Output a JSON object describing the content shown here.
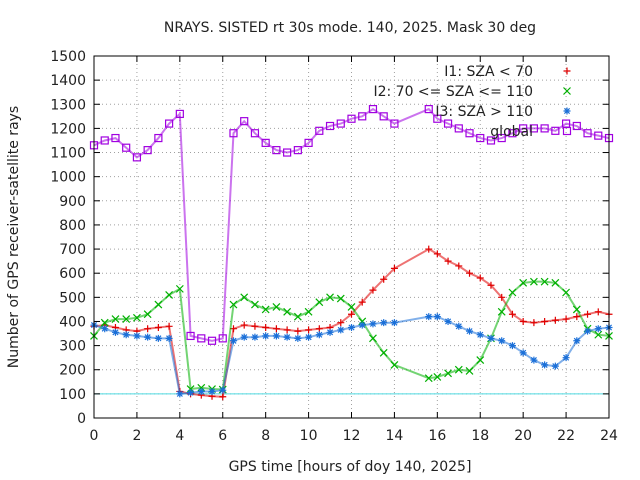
{
  "chart_data": {
    "type": "scatter",
    "title": "NRAYS. SISTED rt 30s mode. 140, 2025. Mask 30 deg",
    "xlabel": "GPS time [hours of doy 140, 2025]",
    "ylabel": "Number of GPS receiver-satellite rays",
    "xlim": [
      0,
      24
    ],
    "ylim": [
      0,
      1500
    ],
    "xticks": [
      0,
      2,
      4,
      6,
      8,
      10,
      12,
      14,
      16,
      18,
      20,
      22,
      24
    ],
    "yticks": [
      0,
      100,
      200,
      300,
      400,
      500,
      600,
      700,
      800,
      900,
      1000,
      1100,
      1200,
      1300,
      1400,
      1500
    ],
    "legend_position": "top-right",
    "reference_line": {
      "y": 100,
      "color": "#4dd9e0"
    },
    "series": [
      {
        "name": "I1: SZA < 70",
        "marker": "plus",
        "color": "#e00000",
        "x": [
          0,
          0.5,
          1,
          1.5,
          2,
          2.5,
          3,
          3.5,
          4,
          4.5,
          5,
          5.5,
          6,
          6.5,
          7,
          7.5,
          8,
          8.5,
          9,
          9.5,
          10,
          10.5,
          11,
          11.5,
          12,
          12.5,
          13,
          13.5,
          14,
          15.6,
          16,
          16.5,
          17,
          17.5,
          18,
          18.5,
          19,
          19.5,
          20,
          20.5,
          21,
          21.5,
          22,
          22.5,
          23,
          23.5,
          24
        ],
        "y": [
          380,
          385,
          375,
          365,
          360,
          370,
          375,
          380,
          110,
          100,
          95,
          90,
          88,
          370,
          385,
          380,
          375,
          370,
          365,
          360,
          365,
          370,
          375,
          395,
          430,
          480,
          530,
          575,
          620,
          700,
          680,
          650,
          630,
          600,
          580,
          550,
          500,
          430,
          400,
          395,
          400,
          405,
          410,
          420,
          430,
          440,
          430
        ]
      },
      {
        "name": "I2: 70 <= SZA <= 110",
        "marker": "cross",
        "color": "#00b000",
        "x": [
          0,
          0.5,
          1,
          1.5,
          2,
          2.5,
          3,
          3.5,
          4,
          4.5,
          5,
          5.5,
          6,
          6.5,
          7,
          7.5,
          8,
          8.5,
          9,
          9.5,
          10,
          10.5,
          11,
          11.5,
          12,
          12.5,
          13,
          13.5,
          14,
          15.6,
          16,
          16.5,
          17,
          17.5,
          18,
          18.5,
          19,
          19.5,
          20,
          20.5,
          21,
          21.5,
          22,
          22.5,
          23,
          23.5,
          24
        ],
        "y": [
          340,
          395,
          410,
          410,
          415,
          430,
          470,
          510,
          535,
          120,
          125,
          120,
          118,
          470,
          500,
          470,
          450,
          460,
          440,
          420,
          440,
          480,
          500,
          495,
          460,
          400,
          330,
          270,
          220,
          165,
          170,
          185,
          200,
          195,
          240,
          330,
          440,
          520,
          560,
          565,
          565,
          560,
          520,
          450,
          370,
          345,
          340
        ]
      },
      {
        "name": "I3: SZA > 110",
        "marker": "star",
        "color": "#1a6fd8",
        "x": [
          0,
          0.5,
          1,
          1.5,
          2,
          2.5,
          3,
          3.5,
          4,
          4.5,
          5,
          5.5,
          6,
          6.5,
          7,
          7.5,
          8,
          8.5,
          9,
          9.5,
          10,
          10.5,
          11,
          11.5,
          12,
          12.5,
          13,
          13.5,
          14,
          15.6,
          16,
          16.5,
          17,
          17.5,
          18,
          18.5,
          19,
          19.5,
          20,
          20.5,
          21,
          21.5,
          22,
          22.5,
          23,
          23.5,
          24
        ],
        "y": [
          385,
          370,
          355,
          345,
          340,
          335,
          330,
          330,
          100,
          105,
          110,
          110,
          115,
          320,
          335,
          335,
          340,
          340,
          335,
          330,
          335,
          345,
          355,
          365,
          375,
          385,
          390,
          395,
          395,
          420,
          420,
          400,
          380,
          360,
          345,
          330,
          320,
          300,
          270,
          240,
          220,
          215,
          250,
          320,
          360,
          370,
          375
        ]
      },
      {
        "name": "global",
        "marker": "square",
        "color": "#a000e0",
        "x": [
          0,
          0.5,
          1,
          1.5,
          2,
          2.5,
          3,
          3.5,
          4,
          4.5,
          5,
          5.5,
          6,
          6.5,
          7,
          7.5,
          8,
          8.5,
          9,
          9.5,
          10,
          10.5,
          11,
          11.5,
          12,
          12.5,
          13,
          13.5,
          14,
          15.6,
          16,
          16.5,
          17,
          17.5,
          18,
          18.5,
          19,
          19.5,
          20,
          20.5,
          21,
          21.5,
          22,
          22.5,
          23,
          23.5,
          24
        ],
        "y": [
          1130,
          1150,
          1160,
          1120,
          1080,
          1110,
          1160,
          1220,
          1260,
          340,
          330,
          320,
          330,
          1180,
          1230,
          1180,
          1140,
          1110,
          1100,
          1110,
          1140,
          1190,
          1210,
          1220,
          1240,
          1250,
          1280,
          1250,
          1220,
          1280,
          1240,
          1220,
          1200,
          1180,
          1160,
          1150,
          1160,
          1180,
          1200,
          1200,
          1200,
          1190,
          1220,
          1210,
          1180,
          1170,
          1160
        ]
      }
    ]
  }
}
